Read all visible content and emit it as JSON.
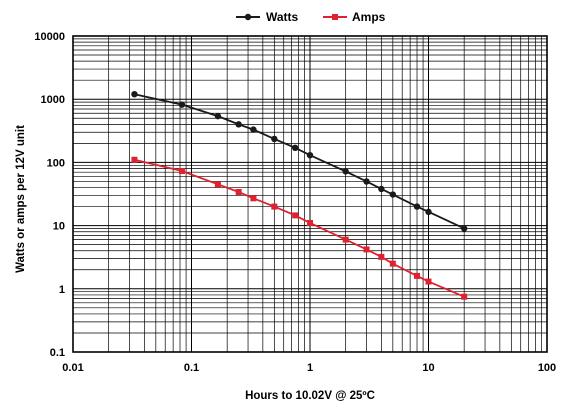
{
  "chart_data": {
    "type": "line",
    "xscale": "log",
    "yscale": "log",
    "xlim": [
      0.01,
      100
    ],
    "ylim": [
      0.1,
      10000
    ],
    "grid": true,
    "legend_position": "top",
    "xlabel": "Hours to 10.02V @ 25ºC",
    "ylabel": "Watts or amps per 12V unit",
    "x_ticks": [
      "0.01",
      "0.1",
      "1",
      "10",
      "100"
    ],
    "y_ticks": [
      "0.1",
      "1",
      "10",
      "100",
      "1000",
      "10000"
    ],
    "series": [
      {
        "name": "Watts",
        "color": "#1a1a1a",
        "marker": "circle",
        "x": [
          0.033,
          0.083,
          0.167,
          0.25,
          0.333,
          0.5,
          0.75,
          1,
          2,
          3,
          4,
          5,
          8,
          10,
          20
        ],
        "y": [
          1200,
          820,
          540,
          400,
          330,
          235,
          170,
          130,
          72,
          50,
          38,
          31,
          20,
          16.5,
          9
        ]
      },
      {
        "name": "Amps",
        "color": "#e0212f",
        "marker": "square",
        "x": [
          0.033,
          0.083,
          0.167,
          0.25,
          0.333,
          0.5,
          0.75,
          1,
          2,
          3,
          4,
          5,
          8,
          10,
          20
        ],
        "y": [
          110,
          73,
          45,
          34,
          27,
          20,
          14.5,
          11,
          6,
          4.2,
          3.2,
          2.5,
          1.6,
          1.3,
          0.75
        ]
      }
    ]
  }
}
